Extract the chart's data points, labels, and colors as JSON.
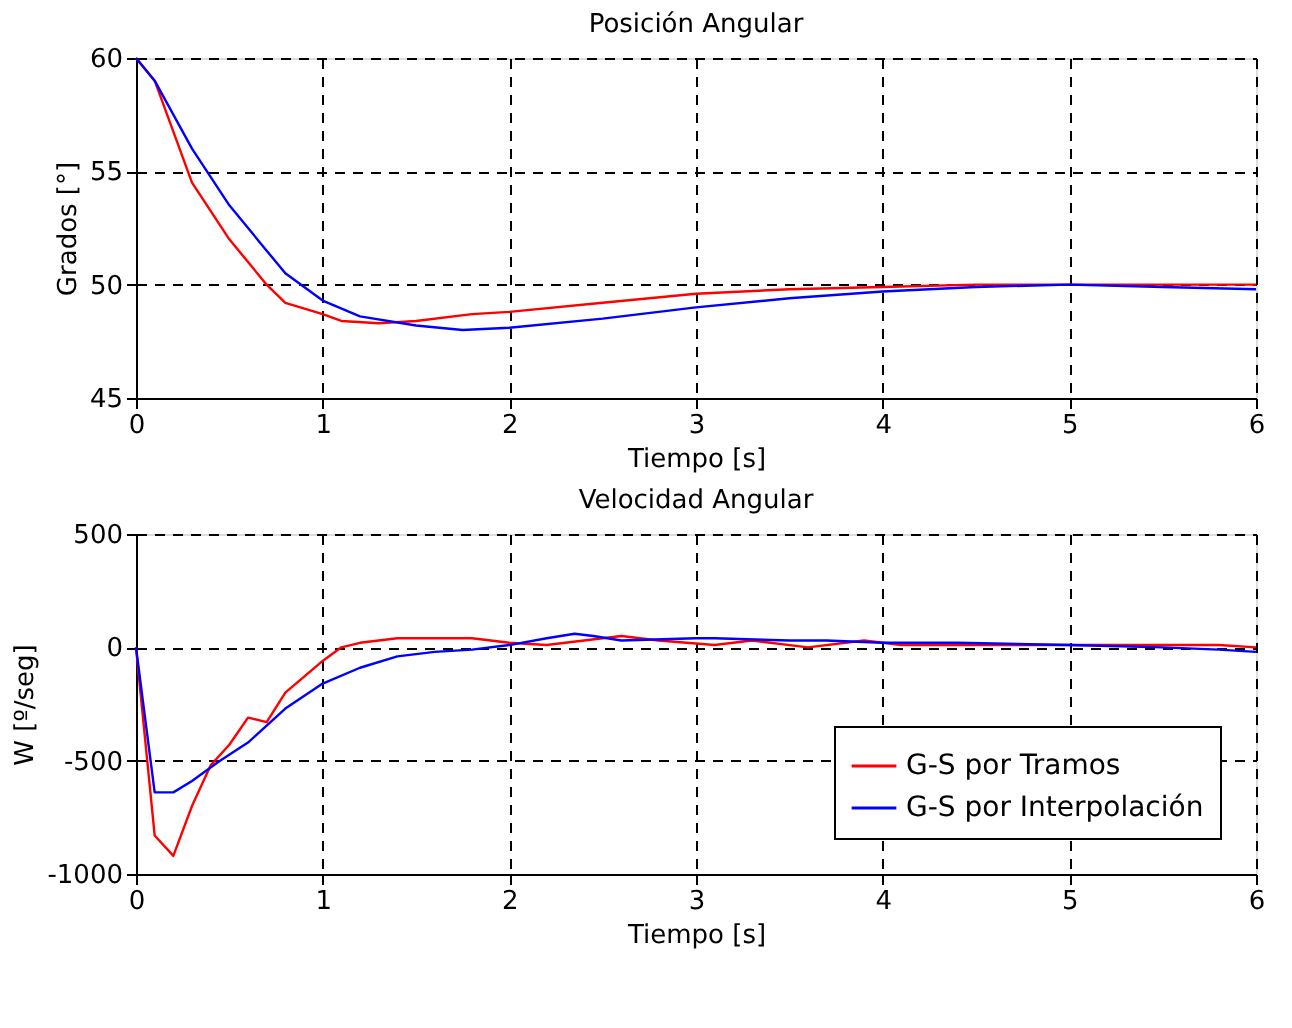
{
  "chart_data": [
    {
      "type": "line",
      "title": "Posición Angular",
      "xlabel": "Tiempo [s]",
      "ylabel": "Grados [°]",
      "xlim": [
        0,
        6
      ],
      "xticks": [
        0,
        1,
        2,
        3,
        4,
        5,
        6
      ],
      "ylim": [
        45,
        60
      ],
      "yticks": [
        45,
        50,
        55,
        60
      ],
      "grid": true,
      "legend": false,
      "marker": "none",
      "line_style": "solid",
      "series": [
        {
          "color": "#ff0000",
          "x": [
            0,
            0.1,
            0.3,
            0.5,
            0.7,
            0.8,
            1.0,
            1.1,
            1.3,
            1.5,
            1.8,
            2.0,
            2.5,
            3.0,
            3.5,
            4.0,
            4.5,
            5.0,
            6.0
          ],
          "values": [
            60,
            59,
            54.5,
            52,
            50,
            49.2,
            48.7,
            48.4,
            48.3,
            48.4,
            48.7,
            48.8,
            49.2,
            49.6,
            49.8,
            49.9,
            50,
            50,
            50
          ]
        },
        {
          "color": "#0000ff",
          "x": [
            0,
            0.1,
            0.3,
            0.5,
            0.7,
            0.8,
            1.0,
            1.2,
            1.5,
            1.75,
            2.0,
            2.5,
            3.0,
            3.5,
            4.0,
            4.5,
            5.0,
            5.5,
            6.0
          ],
          "values": [
            60,
            59,
            56,
            53.5,
            51.5,
            50.5,
            49.3,
            48.6,
            48.2,
            48,
            48.1,
            48.5,
            49,
            49.4,
            49.7,
            49.9,
            50,
            49.9,
            49.8
          ]
        }
      ]
    },
    {
      "type": "line",
      "title": "Velocidad Angular",
      "xlabel": "Tiempo [s]",
      "ylabel": "W [º/seg]",
      "xlim": [
        0,
        6
      ],
      "xticks": [
        0,
        1,
        2,
        3,
        4,
        5,
        6
      ],
      "ylim": [
        -1000,
        500
      ],
      "yticks": [
        -1000,
        -500,
        0,
        500
      ],
      "grid": true,
      "legend": "bottom right",
      "marker": "none",
      "line_style": "solid",
      "series": [
        {
          "name": "G-S por Tramos",
          "color": "#ff0000",
          "x": [
            0,
            0.1,
            0.2,
            0.3,
            0.4,
            0.5,
            0.6,
            0.7,
            0.8,
            1.0,
            1.1,
            1.2,
            1.4,
            1.8,
            2.0,
            2.2,
            2.6,
            2.8,
            3.1,
            3.3,
            3.6,
            3.9,
            4.1,
            4.4,
            5.0,
            5.5,
            5.8,
            6.0
          ],
          "values": [
            0,
            -830,
            -920,
            -700,
            -520,
            -430,
            -310,
            -330,
            -200,
            -60,
            0,
            20,
            40,
            40,
            20,
            10,
            50,
            30,
            10,
            30,
            0,
            30,
            10,
            10,
            10,
            10,
            10,
            0
          ]
        },
        {
          "name": "G-S por Interpolación",
          "color": "#0000ff",
          "x": [
            0,
            0.1,
            0.2,
            0.3,
            0.45,
            0.6,
            0.8,
            1.0,
            1.2,
            1.4,
            1.6,
            1.8,
            2.0,
            2.2,
            2.35,
            2.45,
            2.6,
            3.0,
            3.1,
            3.5,
            3.7,
            4.0,
            4.4,
            5.0,
            5.5,
            5.8,
            6.0
          ],
          "values": [
            0,
            -640,
            -640,
            -590,
            -500,
            -420,
            -270,
            -160,
            -90,
            -40,
            -20,
            -10,
            10,
            40,
            60,
            50,
            30,
            40,
            40,
            30,
            30,
            20,
            20,
            10,
            0,
            -10,
            -20
          ]
        }
      ]
    }
  ]
}
